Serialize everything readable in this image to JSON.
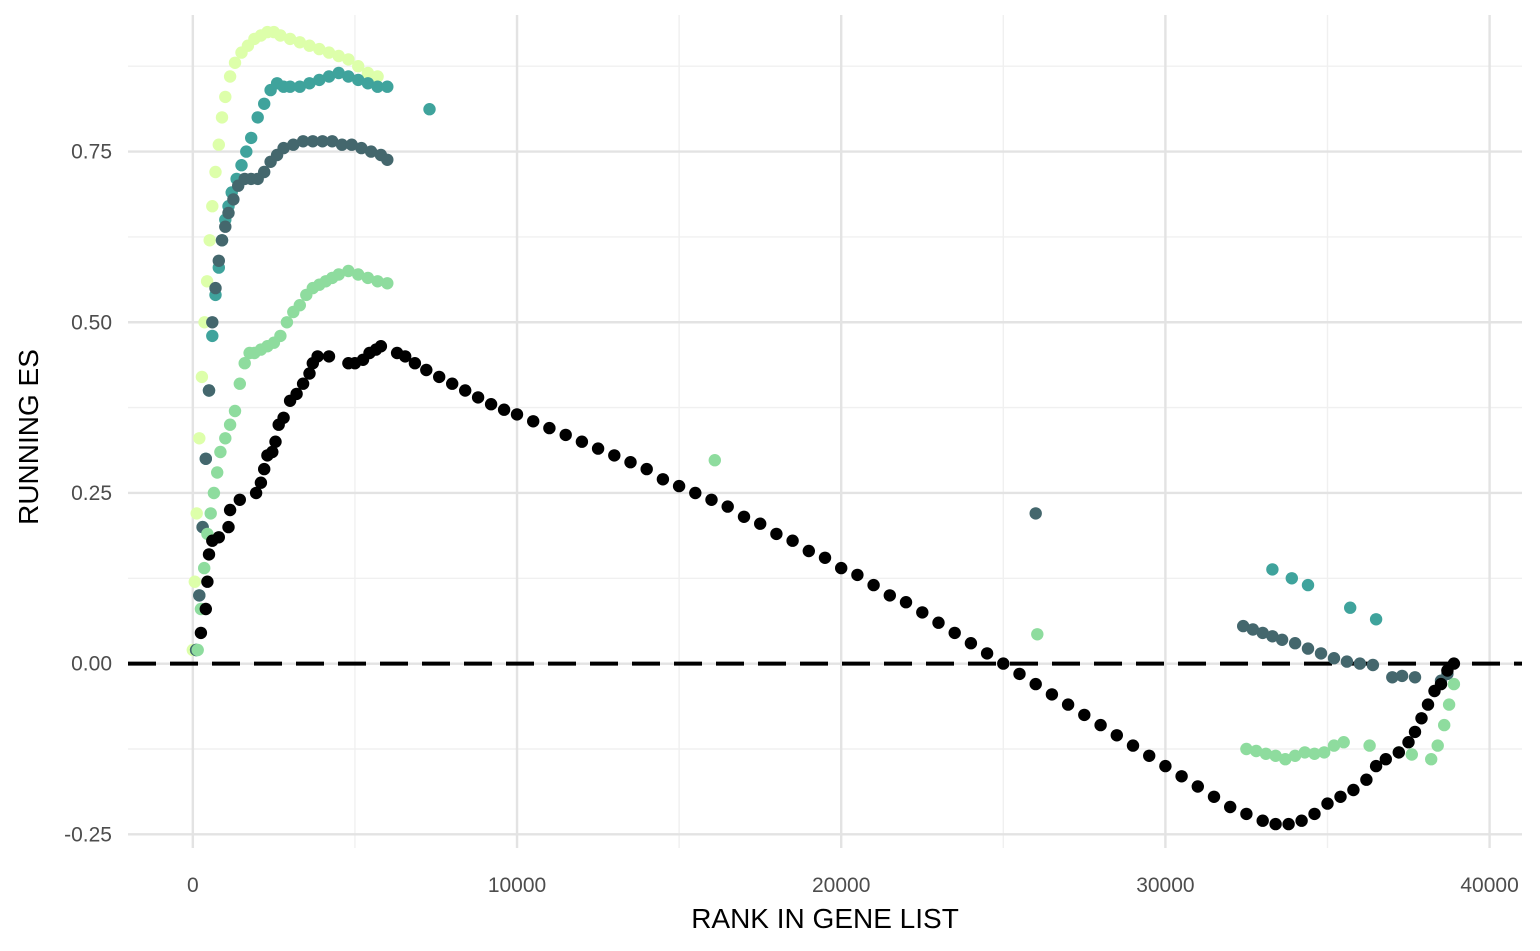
{
  "chart_data": {
    "type": "scatter",
    "title": "",
    "xlabel": "RANK IN GENE LIST",
    "ylabel": "RUNNING ES",
    "xlim": [
      -2000,
      41000
    ],
    "ylim": [
      -0.27,
      0.95
    ],
    "x_ticks": [
      0,
      10000,
      20000,
      30000,
      40000
    ],
    "x_tick_labels": [
      "0",
      "10000",
      "20000",
      "30000",
      "40000"
    ],
    "y_ticks": [
      -0.25,
      0,
      0.25,
      0.5,
      0.75
    ],
    "y_tick_labels": [
      "-0.25",
      "0.00",
      "0.25",
      "0.50",
      "0.75"
    ],
    "grid": true,
    "legend": "none",
    "reference_line": {
      "y": 0,
      "style": "dashed",
      "color": "#000000"
    },
    "series": [
      {
        "color": "#ddffaa",
        "points": [
          [
            0,
            0.02
          ],
          [
            60,
            0.12
          ],
          [
            120,
            0.22
          ],
          [
            200,
            0.33
          ],
          [
            280,
            0.42
          ],
          [
            360,
            0.5
          ],
          [
            440,
            0.56
          ],
          [
            520,
            0.62
          ],
          [
            600,
            0.67
          ],
          [
            700,
            0.72
          ],
          [
            800,
            0.76
          ],
          [
            900,
            0.8
          ],
          [
            1000,
            0.83
          ],
          [
            1150,
            0.86
          ],
          [
            1300,
            0.88
          ],
          [
            1500,
            0.895
          ],
          [
            1700,
            0.905
          ],
          [
            1900,
            0.915
          ],
          [
            2100,
            0.92
          ],
          [
            2300,
            0.925
          ],
          [
            2500,
            0.925
          ],
          [
            2700,
            0.92
          ],
          [
            3000,
            0.915
          ],
          [
            3300,
            0.91
          ],
          [
            3600,
            0.905
          ],
          [
            3900,
            0.9
          ],
          [
            4200,
            0.895
          ],
          [
            4500,
            0.89
          ],
          [
            4800,
            0.885
          ],
          [
            5100,
            0.875
          ],
          [
            5400,
            0.865
          ],
          [
            5700,
            0.86
          ]
        ]
      },
      {
        "color": "#3fa39c",
        "points": [
          [
            100,
            0.02
          ],
          [
            200,
            0.1
          ],
          [
            300,
            0.2
          ],
          [
            400,
            0.3
          ],
          [
            500,
            0.4
          ],
          [
            600,
            0.48
          ],
          [
            700,
            0.54
          ],
          [
            800,
            0.58
          ],
          [
            900,
            0.62
          ],
          [
            1000,
            0.65
          ],
          [
            1100,
            0.67
          ],
          [
            1200,
            0.69
          ],
          [
            1350,
            0.71
          ],
          [
            1500,
            0.73
          ],
          [
            1650,
            0.75
          ],
          [
            1800,
            0.77
          ],
          [
            2000,
            0.8
          ],
          [
            2200,
            0.82
          ],
          [
            2400,
            0.84
          ],
          [
            2600,
            0.85
          ],
          [
            2800,
            0.845
          ],
          [
            3000,
            0.845
          ],
          [
            3300,
            0.845
          ],
          [
            3600,
            0.85
          ],
          [
            3900,
            0.855
          ],
          [
            4200,
            0.86
          ],
          [
            4500,
            0.865
          ],
          [
            4800,
            0.86
          ],
          [
            5100,
            0.855
          ],
          [
            5400,
            0.85
          ],
          [
            5700,
            0.845
          ],
          [
            6000,
            0.845
          ],
          [
            7300,
            0.812
          ],
          [
            33300,
            0.138
          ],
          [
            33900,
            0.125
          ],
          [
            34400,
            0.115
          ],
          [
            35700,
            0.082
          ],
          [
            36500,
            0.065
          ]
        ]
      },
      {
        "color": "#44676d",
        "points": [
          [
            100,
            0.02
          ],
          [
            200,
            0.1
          ],
          [
            300,
            0.2
          ],
          [
            400,
            0.3
          ],
          [
            500,
            0.4
          ],
          [
            600,
            0.5
          ],
          [
            700,
            0.55
          ],
          [
            800,
            0.59
          ],
          [
            900,
            0.62
          ],
          [
            1000,
            0.64
          ],
          [
            1100,
            0.66
          ],
          [
            1250,
            0.68
          ],
          [
            1400,
            0.7
          ],
          [
            1600,
            0.71
          ],
          [
            1800,
            0.71
          ],
          [
            2000,
            0.71
          ],
          [
            2200,
            0.72
          ],
          [
            2400,
            0.735
          ],
          [
            2600,
            0.745
          ],
          [
            2800,
            0.755
          ],
          [
            3100,
            0.76
          ],
          [
            3400,
            0.765
          ],
          [
            3700,
            0.765
          ],
          [
            4000,
            0.765
          ],
          [
            4300,
            0.765
          ],
          [
            4600,
            0.76
          ],
          [
            4900,
            0.76
          ],
          [
            5200,
            0.755
          ],
          [
            5500,
            0.75
          ],
          [
            5800,
            0.745
          ],
          [
            6000,
            0.738
          ],
          [
            26000,
            0.22
          ],
          [
            32400,
            0.055
          ],
          [
            32700,
            0.05
          ],
          [
            33000,
            0.045
          ],
          [
            33300,
            0.04
          ],
          [
            33600,
            0.035
          ],
          [
            34000,
            0.03
          ],
          [
            34400,
            0.022
          ],
          [
            34800,
            0.015
          ],
          [
            35200,
            0.008
          ],
          [
            35600,
            0.003
          ],
          [
            36000,
            0.0
          ],
          [
            36400,
            -0.002
          ],
          [
            37000,
            -0.02
          ],
          [
            37300,
            -0.018
          ],
          [
            37700,
            -0.02
          ],
          [
            38500,
            -0.025
          ],
          [
            38700,
            -0.015
          ]
        ]
      },
      {
        "color": "#8edc9e",
        "points": [
          [
            150,
            0.02
          ],
          [
            250,
            0.08
          ],
          [
            350,
            0.14
          ],
          [
            450,
            0.19
          ],
          [
            550,
            0.22
          ],
          [
            650,
            0.25
          ],
          [
            750,
            0.28
          ],
          [
            850,
            0.31
          ],
          [
            1000,
            0.33
          ],
          [
            1150,
            0.35
          ],
          [
            1300,
            0.37
          ],
          [
            1450,
            0.41
          ],
          [
            1600,
            0.44
          ],
          [
            1750,
            0.455
          ],
          [
            1900,
            0.455
          ],
          [
            2100,
            0.46
          ],
          [
            2300,
            0.465
          ],
          [
            2500,
            0.47
          ],
          [
            2700,
            0.48
          ],
          [
            2900,
            0.5
          ],
          [
            3100,
            0.515
          ],
          [
            3300,
            0.525
          ],
          [
            3500,
            0.54
          ],
          [
            3700,
            0.55
          ],
          [
            3900,
            0.555
          ],
          [
            4100,
            0.56
          ],
          [
            4300,
            0.565
          ],
          [
            4500,
            0.57
          ],
          [
            4800,
            0.575
          ],
          [
            5100,
            0.57
          ],
          [
            5400,
            0.565
          ],
          [
            5700,
            0.56
          ],
          [
            6000,
            0.557
          ],
          [
            16100,
            0.298
          ],
          [
            26050,
            0.043
          ],
          [
            32500,
            -0.125
          ],
          [
            32800,
            -0.128
          ],
          [
            33100,
            -0.132
          ],
          [
            33400,
            -0.135
          ],
          [
            33700,
            -0.14
          ],
          [
            34000,
            -0.135
          ],
          [
            34300,
            -0.13
          ],
          [
            34600,
            -0.132
          ],
          [
            34900,
            -0.13
          ],
          [
            35200,
            -0.12
          ],
          [
            35500,
            -0.115
          ],
          [
            36300,
            -0.12
          ],
          [
            37200,
            -0.13
          ],
          [
            37600,
            -0.133
          ],
          [
            38200,
            -0.14
          ],
          [
            38400,
            -0.12
          ],
          [
            38600,
            -0.09
          ],
          [
            38750,
            -0.06
          ],
          [
            38900,
            -0.03
          ]
        ]
      },
      {
        "color": "#000000",
        "points": [
          [
            250,
            0.045
          ],
          [
            400,
            0.08
          ],
          [
            450,
            0.12
          ],
          [
            500,
            0.16
          ],
          [
            600,
            0.18
          ],
          [
            800,
            0.185
          ],
          [
            1100,
            0.2
          ],
          [
            1150,
            0.225
          ],
          [
            1450,
            0.24
          ],
          [
            1950,
            0.25
          ],
          [
            2100,
            0.265
          ],
          [
            2200,
            0.285
          ],
          [
            2300,
            0.305
          ],
          [
            2450,
            0.31
          ],
          [
            2550,
            0.325
          ],
          [
            2650,
            0.35
          ],
          [
            2800,
            0.36
          ],
          [
            3000,
            0.385
          ],
          [
            3200,
            0.395
          ],
          [
            3400,
            0.41
          ],
          [
            3600,
            0.425
          ],
          [
            3700,
            0.44
          ],
          [
            3850,
            0.45
          ],
          [
            4200,
            0.45
          ],
          [
            4800,
            0.44
          ],
          [
            5000,
            0.44
          ],
          [
            5250,
            0.445
          ],
          [
            5450,
            0.455
          ],
          [
            5650,
            0.46
          ],
          [
            5800,
            0.465
          ],
          [
            6300,
            0.455
          ],
          [
            6550,
            0.45
          ],
          [
            6850,
            0.44
          ],
          [
            7200,
            0.43
          ],
          [
            7600,
            0.42
          ],
          [
            8000,
            0.41
          ],
          [
            8400,
            0.4
          ],
          [
            8800,
            0.39
          ],
          [
            9200,
            0.38
          ],
          [
            9600,
            0.372
          ],
          [
            10000,
            0.365
          ],
          [
            10500,
            0.355
          ],
          [
            11000,
            0.345
          ],
          [
            11500,
            0.335
          ],
          [
            12000,
            0.325
          ],
          [
            12500,
            0.315
          ],
          [
            13000,
            0.305
          ],
          [
            13500,
            0.295
          ],
          [
            14000,
            0.285
          ],
          [
            14500,
            0.27
          ],
          [
            15000,
            0.26
          ],
          [
            15500,
            0.25
          ],
          [
            16000,
            0.24
          ],
          [
            16500,
            0.23
          ],
          [
            17000,
            0.215
          ],
          [
            17500,
            0.205
          ],
          [
            18000,
            0.19
          ],
          [
            18500,
            0.18
          ],
          [
            19000,
            0.165
          ],
          [
            19500,
            0.155
          ],
          [
            20000,
            0.14
          ],
          [
            20500,
            0.13
          ],
          [
            21000,
            0.115
          ],
          [
            21500,
            0.1
          ],
          [
            22000,
            0.09
          ],
          [
            22500,
            0.075
          ],
          [
            23000,
            0.06
          ],
          [
            23500,
            0.045
          ],
          [
            24000,
            0.03
          ],
          [
            24500,
            0.015
          ],
          [
            25000,
            0.0
          ],
          [
            25500,
            -0.015
          ],
          [
            26000,
            -0.03
          ],
          [
            26500,
            -0.045
          ],
          [
            27000,
            -0.06
          ],
          [
            27500,
            -0.075
          ],
          [
            28000,
            -0.09
          ],
          [
            28500,
            -0.105
          ],
          [
            29000,
            -0.12
          ],
          [
            29500,
            -0.135
          ],
          [
            30000,
            -0.15
          ],
          [
            30500,
            -0.165
          ],
          [
            31000,
            -0.18
          ],
          [
            31500,
            -0.195
          ],
          [
            32000,
            -0.21
          ],
          [
            32500,
            -0.22
          ],
          [
            33000,
            -0.23
          ],
          [
            33400,
            -0.235
          ],
          [
            33800,
            -0.235
          ],
          [
            34200,
            -0.23
          ],
          [
            34600,
            -0.22
          ],
          [
            35000,
            -0.205
          ],
          [
            35400,
            -0.195
          ],
          [
            35800,
            -0.185
          ],
          [
            36200,
            -0.17
          ],
          [
            36500,
            -0.15
          ],
          [
            36800,
            -0.14
          ],
          [
            37200,
            -0.13
          ],
          [
            37500,
            -0.115
          ],
          [
            37700,
            -0.1
          ],
          [
            37900,
            -0.08
          ],
          [
            38100,
            -0.06
          ],
          [
            38300,
            -0.04
          ],
          [
            38500,
            -0.03
          ],
          [
            38700,
            -0.01
          ],
          [
            38900,
            0.0
          ]
        ]
      }
    ]
  }
}
